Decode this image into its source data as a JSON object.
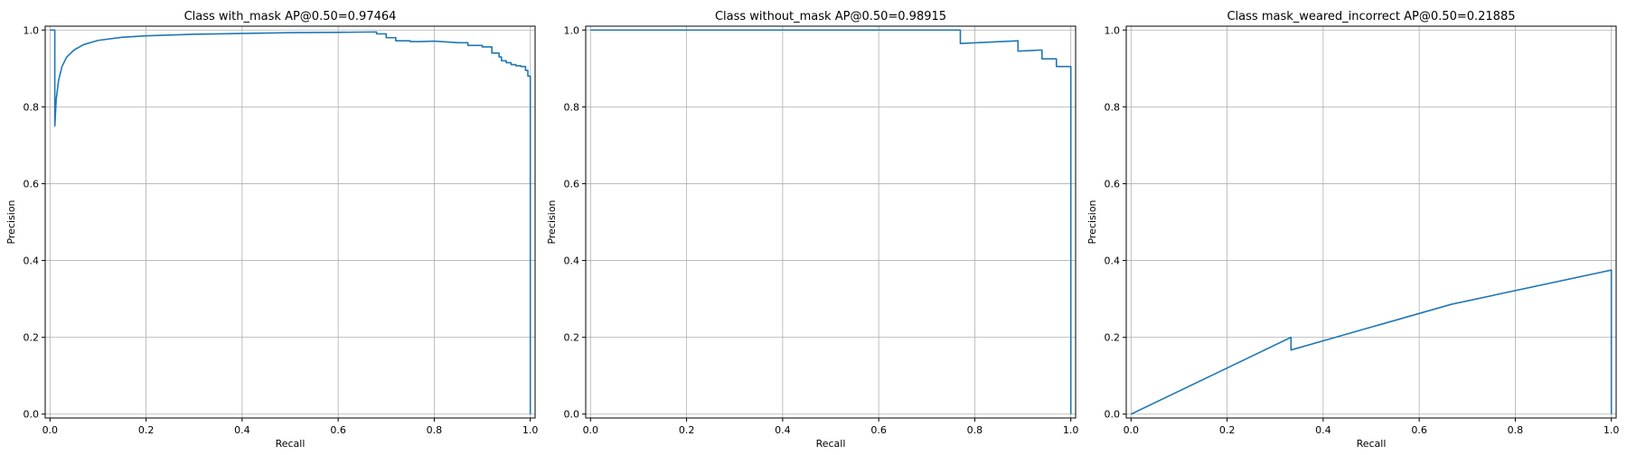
{
  "chart_data": [
    {
      "type": "line",
      "title": "Class with_mask AP@0.50=0.97464",
      "xlabel": "Recall",
      "ylabel": "Precision",
      "xlim": [
        -0.01,
        1.01
      ],
      "ylim": [
        -0.01,
        1.01
      ],
      "grid": true,
      "xticks": [
        "0.0",
        "0.2",
        "0.4",
        "0.6",
        "0.8",
        "1.0"
      ],
      "yticks": [
        "0.0",
        "0.2",
        "0.4",
        "0.6",
        "0.8",
        "1.0"
      ],
      "color": "#1f77b4",
      "series": [
        {
          "x": [
            0.0,
            0.01,
            0.01,
            0.013,
            0.018,
            0.025,
            0.035,
            0.05,
            0.07,
            0.1,
            0.15,
            0.2,
            0.3,
            0.4,
            0.5,
            0.6,
            0.68,
            0.68,
            0.7,
            0.7,
            0.72,
            0.72,
            0.75,
            0.75,
            0.77,
            0.77,
            0.8,
            0.85,
            0.87,
            0.87,
            0.9,
            0.9,
            0.92,
            0.92,
            0.935,
            0.935,
            0.94,
            0.94,
            0.95,
            0.95,
            0.96,
            0.96,
            0.97,
            0.97,
            0.98,
            0.98,
            0.99,
            0.99,
            0.995,
            0.995,
            1.0,
            1.0
          ],
          "y": [
            1.0,
            1.0,
            0.75,
            0.82,
            0.87,
            0.905,
            0.93,
            0.948,
            0.962,
            0.973,
            0.981,
            0.985,
            0.989,
            0.991,
            0.993,
            0.994,
            0.995,
            0.99,
            0.99,
            0.98,
            0.98,
            0.972,
            0.972,
            0.97,
            0.97,
            0.97,
            0.971,
            0.967,
            0.967,
            0.96,
            0.96,
            0.956,
            0.956,
            0.94,
            0.94,
            0.93,
            0.93,
            0.92,
            0.92,
            0.915,
            0.915,
            0.91,
            0.91,
            0.907,
            0.907,
            0.905,
            0.905,
            0.895,
            0.895,
            0.88,
            0.88,
            0.0
          ]
        }
      ]
    },
    {
      "type": "line",
      "title": "Class without_mask AP@0.50=0.98915",
      "xlabel": "Recall",
      "ylabel": "Precision",
      "xlim": [
        -0.01,
        1.01
      ],
      "ylim": [
        -0.01,
        1.01
      ],
      "grid": true,
      "xticks": [
        "0.0",
        "0.2",
        "0.4",
        "0.6",
        "0.8",
        "1.0"
      ],
      "yticks": [
        "0.0",
        "0.2",
        "0.4",
        "0.6",
        "0.8",
        "1.0"
      ],
      "color": "#1f77b4",
      "series": [
        {
          "x": [
            0.0,
            0.77,
            0.77,
            0.89,
            0.89,
            0.94,
            0.94,
            0.97,
            0.97,
            0.99,
            0.99,
            1.0,
            1.0
          ],
          "y": [
            1.0,
            1.0,
            0.965,
            0.972,
            0.945,
            0.948,
            0.925,
            0.925,
            0.905,
            0.905,
            0.905,
            0.905,
            0.0
          ]
        }
      ]
    },
    {
      "type": "line",
      "title": "Class mask_weared_incorrect AP@0.50=0.21885",
      "xlabel": "Recall",
      "ylabel": "Precision",
      "xlim": [
        -0.01,
        1.01
      ],
      "ylim": [
        -0.01,
        1.01
      ],
      "grid": true,
      "xticks": [
        "0.0",
        "0.2",
        "0.4",
        "0.6",
        "0.8",
        "1.0"
      ],
      "yticks": [
        "0.0",
        "0.2",
        "0.4",
        "0.6",
        "0.8",
        "1.0"
      ],
      "color": "#1f77b4",
      "series": [
        {
          "x": [
            0.0,
            0.333,
            0.333,
            0.667,
            1.0,
            1.0
          ],
          "y": [
            0.0,
            0.2,
            0.167,
            0.286,
            0.375,
            0.0
          ]
        }
      ]
    }
  ]
}
